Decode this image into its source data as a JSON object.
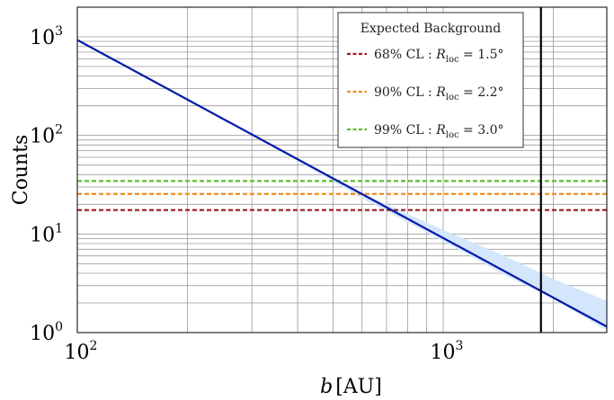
{
  "chart_data": {
    "type": "line",
    "xscale": "log",
    "yscale": "log",
    "xlim": [
      100,
      2800
    ],
    "ylim": [
      1,
      2000
    ],
    "xlabel": "b [AU]",
    "ylabel": "Counts",
    "grid": true,
    "x_ticks": [
      {
        "value": 100,
        "base": "10",
        "exp": "2"
      },
      {
        "value": 1000,
        "base": "10",
        "exp": "3"
      }
    ],
    "y_ticks": [
      {
        "value": 1,
        "base": "10",
        "exp": "0"
      },
      {
        "value": 10,
        "base": "10",
        "exp": "1"
      },
      {
        "value": 100,
        "base": "10",
        "exp": "2"
      },
      {
        "value": 1000,
        "base": "10",
        "exp": "3"
      }
    ],
    "curve": {
      "color": "#0019a8",
      "x": [
        100,
        2800
      ],
      "y": [
        930,
        1.15
      ],
      "band": {
        "color": "#d4e6fb",
        "x": [
          100,
          200,
          400,
          600,
          1000,
          1500,
          2000,
          2800
        ],
        "lower": [
          930,
          230,
          55,
          23,
          8.5,
          3.7,
          2.2,
          1.05
        ],
        "upper": [
          940,
          232,
          58,
          26,
          11,
          5.8,
          3.5,
          2.1
        ]
      }
    },
    "vline": {
      "x": 1850,
      "color": "#000000"
    },
    "series": [
      {
        "name": "68% CL : R_loc = 1.5°",
        "y": 17.5,
        "color": "#a11a1a"
      },
      {
        "name": "90% CL : R_loc = 2.2°",
        "y": 25.5,
        "color": "#f08c1f"
      },
      {
        "name": "99% CL : R_loc = 3.0°",
        "y": 34.5,
        "color": "#5cbf2a"
      }
    ],
    "legend": {
      "title": "Expected Background",
      "position": "top-right",
      "entries": [
        {
          "pct": "68%",
          "cl": "CL",
          "sym": "R",
          "sub": "loc",
          "val": "1.5°",
          "color": "#a11a1a"
        },
        {
          "pct": "90%",
          "cl": "CL",
          "sym": "R",
          "sub": "loc",
          "val": "2.2°",
          "color": "#f08c1f"
        },
        {
          "pct": "99%",
          "cl": "CL",
          "sym": "R",
          "sub": "loc",
          "val": "3.0°",
          "color": "#5cbf2a"
        }
      ]
    }
  }
}
